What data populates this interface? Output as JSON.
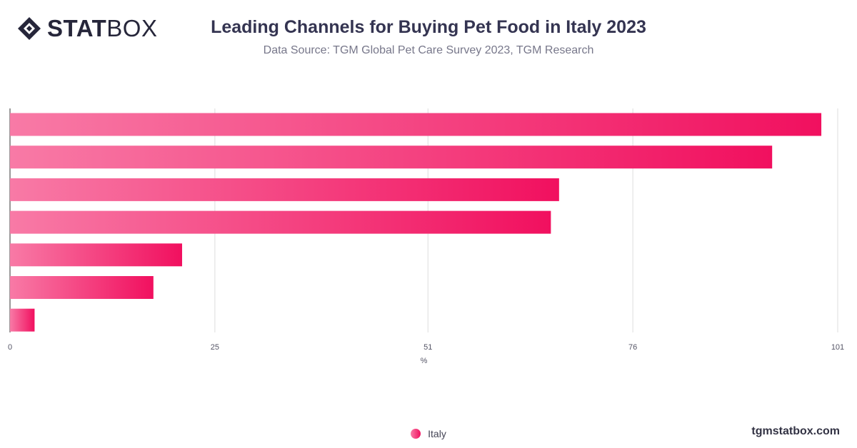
{
  "brand": {
    "logo_bold": "STAT",
    "logo_light": "BOX",
    "website": "tgmstatbox.com"
  },
  "header": {
    "title": "Leading Channels for Buying Pet Food in Italy 2023",
    "subtitle": "Data Source: TGM Global Pet Care Survey 2023, TGM Research"
  },
  "colors": {
    "bar_start": "#f87aa6",
    "bar_end": "#f1105f",
    "grid": "#dddddd",
    "axis": "#333333"
  },
  "chart_data": {
    "type": "bar",
    "orientation": "horizontal",
    "categories": [
      "",
      "",
      "",
      "",
      "",
      "",
      ""
    ],
    "series": [
      {
        "name": "Italy",
        "values": [
          99,
          93,
          67,
          66,
          21,
          17.5,
          3
        ]
      }
    ],
    "x_ticks": [
      "0",
      "25",
      "51",
      "76",
      "101"
    ],
    "xlim": [
      0,
      101
    ],
    "xlabel": "%",
    "grid": true,
    "legend_position": "bottom"
  }
}
